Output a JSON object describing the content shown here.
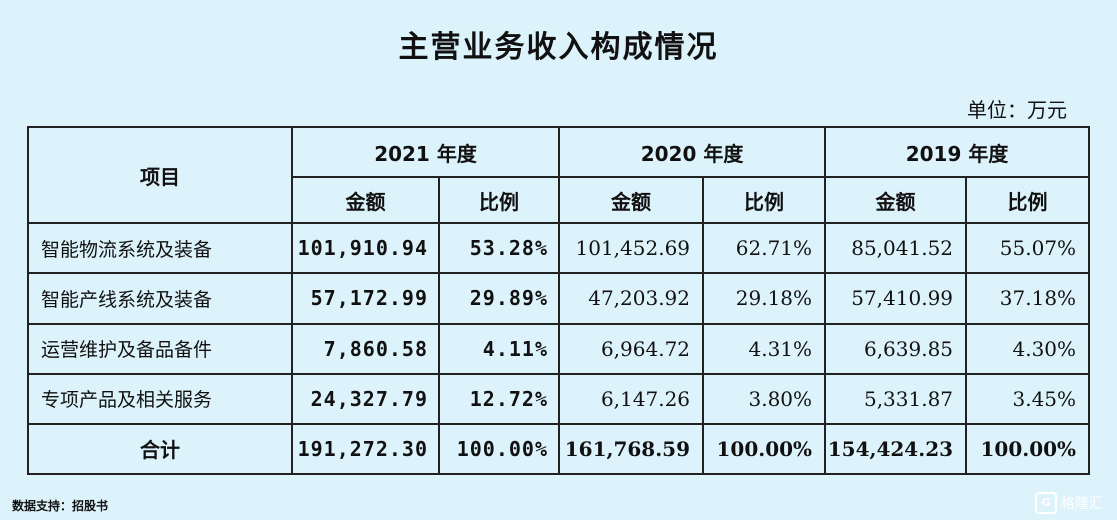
{
  "title": "主营业务收入构成情况",
  "unit": "单位：万元",
  "table": {
    "header_item": "项目",
    "years": [
      "2021 年度",
      "2020 年度",
      "2019 年度"
    ],
    "sub_amount": "金额",
    "sub_ratio": "比例",
    "rows": [
      {
        "label": "智能物流系统及装备",
        "v": [
          "101,910.94",
          "53.28%",
          "101,452.69",
          "62.71%",
          "85,041.52",
          "55.07%"
        ]
      },
      {
        "label": "智能产线系统及装备",
        "v": [
          "57,172.99",
          "29.89%",
          "47,203.92",
          "29.18%",
          "57,410.99",
          "37.18%"
        ]
      },
      {
        "label": "运营维护及备品备件",
        "v": [
          "7,860.58",
          "4.11%",
          "6,964.72",
          "4.31%",
          "6,639.85",
          "4.30%"
        ]
      },
      {
        "label": "专项产品及相关服务",
        "v": [
          "24,327.79",
          "12.72%",
          "6,147.26",
          "3.80%",
          "5,331.87",
          "3.45%"
        ]
      }
    ],
    "total": {
      "label": "合计",
      "v": [
        "191,272.30",
        "100.00%",
        "161,768.59",
        "100.00%",
        "154,424.23",
        "100.00%"
      ]
    }
  },
  "source": "数据支持：招股书",
  "logo": {
    "mark": "G",
    "text": "格隆汇"
  }
}
